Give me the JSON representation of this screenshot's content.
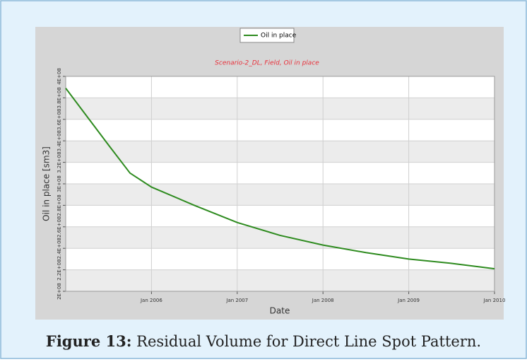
{
  "chart_data": {
    "type": "line",
    "legend": "Oil in place",
    "title": "Scenario-2_DL, Field, Oil in place",
    "ylabel": "Oil in place [sm3]",
    "xlabel": "Date",
    "x": [
      "2005-01",
      "2005-04",
      "2005-07",
      "2005-10",
      "2006-01",
      "2006-07",
      "2007-01",
      "2007-07",
      "2008-01",
      "2008-07",
      "2009-01",
      "2009-07",
      "2010-01"
    ],
    "series": [
      {
        "name": "Oil in place",
        "color": "#2e8b1f",
        "values": [
          389000000,
          362500000,
          336000000,
          310000000,
          297000000,
          280000000,
          264000000,
          252000000,
          243000000,
          236000000,
          230000000,
          226000000,
          221000000
        ]
      }
    ],
    "xlim": [
      "2005-01",
      "2010-01"
    ],
    "xticks": [
      {
        "value": "2006-01",
        "label": "Jan 2006"
      },
      {
        "value": "2007-01",
        "label": "Jan 2007"
      },
      {
        "value": "2008-01",
        "label": "Jan 2008"
      },
      {
        "value": "2009-01",
        "label": "Jan 2009"
      },
      {
        "value": "2010-01",
        "label": "Jan 2010"
      }
    ],
    "ylim": [
      200000000,
      400000000
    ],
    "yticks": [
      {
        "value": 200000000,
        "label": "2E+08"
      },
      {
        "value": 220000000,
        "label": "2.2E+08"
      },
      {
        "value": 240000000,
        "label": "2.4E+08"
      },
      {
        "value": 260000000,
        "label": "2.6E+08"
      },
      {
        "value": 280000000,
        "label": "2.8E+08"
      },
      {
        "value": 300000000,
        "label": "3E+08"
      },
      {
        "value": 320000000,
        "label": "3.2E+08"
      },
      {
        "value": 340000000,
        "label": "3.4E+08"
      },
      {
        "value": 360000000,
        "label": "3.6E+08"
      },
      {
        "value": 380000000,
        "label": "3.8E+08"
      },
      {
        "value": 400000000,
        "label": "4E+08"
      }
    ],
    "grid": true
  },
  "caption": {
    "label": "Figure 13:",
    "text": "Residual Volume for Direct Line Spot Pattern."
  }
}
